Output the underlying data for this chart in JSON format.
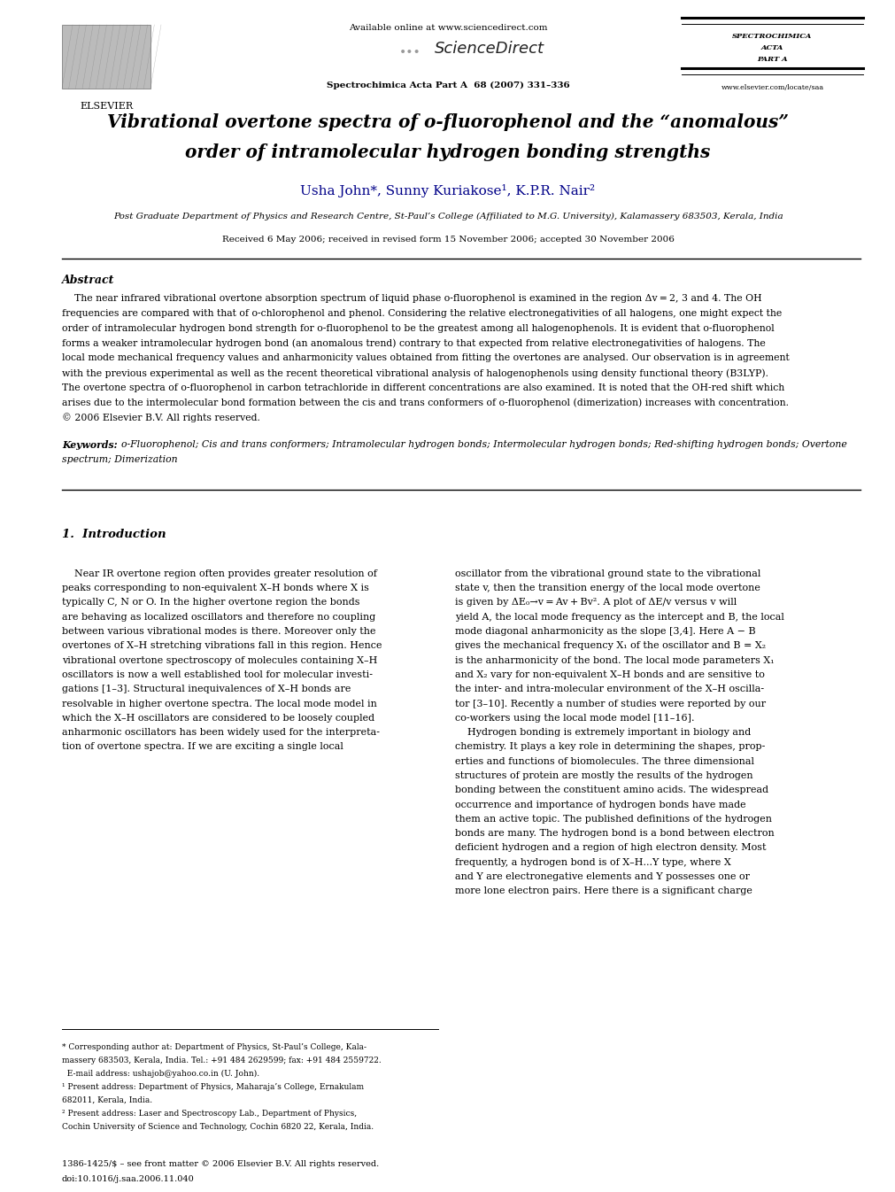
{
  "page_width": 9.92,
  "page_height": 13.23,
  "bg_color": "#ffffff",
  "available_online": "Available online at www.sciencedirect.com",
  "journal_citation": "Spectrochimica Acta Part A  68 (2007) 331–336",
  "spectro_lines": [
    "SPECTROCHIMICA",
    "ACTA",
    "PART A"
  ],
  "website": "www.elsevier.com/locate/saa",
  "title_line1": "Vibrational overtone spectra of o-fluorophenol and the “anomalous”",
  "title_line2": "order of intramolecular hydrogen bonding strengths",
  "authors": "Usha John*, Sunny Kuriakose¹, K.P.R. Nair²",
  "affiliation": "Post Graduate Department of Physics and Research Centre, St-Paul’s College (Affiliated to M.G. University), Kalamassery 683503, Kerala, India",
  "received_line": "Received 6 May 2006; received in revised form 15 November 2006; accepted 30 November 2006",
  "abstract_title": "Abstract",
  "abstract_lines": [
    "    The near infrared vibrational overtone absorption spectrum of liquid phase o-fluorophenol is examined in the region Δv = 2, 3 and 4. The OH",
    "frequencies are compared with that of o-chlorophenol and phenol. Considering the relative electronegativities of all halogens, one might expect the",
    "order of intramolecular hydrogen bond strength for o-fluorophenol to be the greatest among all halogenophenols. It is evident that o-fluorophenol",
    "forms a weaker intramolecular hydrogen bond (an anomalous trend) contrary to that expected from relative electronegativities of halogens. The",
    "local mode mechanical frequency values and anharmonicity values obtained from fitting the overtones are analysed. Our observation is in agreement",
    "with the previous experimental as well as the recent theoretical vibrational analysis of halogenophenols using density functional theory (B3LYP).",
    "The overtone spectra of o-fluorophenol in carbon tetrachloride in different concentrations are also examined. It is noted that the OH-red shift which",
    "arises due to the intermolecular bond formation between the cis and trans conformers of o-fluorophenol (dimerization) increases with concentration.",
    "© 2006 Elsevier B.V. All rights reserved."
  ],
  "keywords_label": "Keywords:",
  "keywords_lines": [
    "  o-Fluorophenol; Cis and trans conformers; Intramolecular hydrogen bonds; Intermolecular hydrogen bonds; Red-shifting hydrogen bonds; Overtone",
    "spectrum; Dimerization"
  ],
  "section1_title": "1.  Introduction",
  "intro_col1": [
    "    Near IR overtone region often provides greater resolution of",
    "peaks corresponding to non-equivalent X–H bonds where X is",
    "typically C, N or O. In the higher overtone region the bonds",
    "are behaving as localized oscillators and therefore no coupling",
    "between various vibrational modes is there. Moreover only the",
    "overtones of X–H stretching vibrations fall in this region. Hence",
    "vibrational overtone spectroscopy of molecules containing X–H",
    "oscillators is now a well established tool for molecular investi-",
    "gations [1–3]. Structural inequivalences of X–H bonds are",
    "resolvable in higher overtone spectra. The local mode model in",
    "which the X–H oscillators are considered to be loosely coupled",
    "anharmonic oscillators has been widely used for the interpreta-",
    "tion of overtone spectra. If we are exciting a single local"
  ],
  "intro_col2": [
    "oscillator from the vibrational ground state to the vibrational",
    "state v, then the transition energy of the local mode overtone",
    "is given by ΔE₀→v = Av + Bv². A plot of ΔE/v versus v will",
    "yield A, the local mode frequency as the intercept and B, the local",
    "mode diagonal anharmonicity as the slope [3,4]. Here A − B",
    "gives the mechanical frequency X₁ of the oscillator and B = X₂",
    "is the anharmonicity of the bond. The local mode parameters X₁",
    "and X₂ vary for non-equivalent X–H bonds and are sensitive to",
    "the inter- and intra-molecular environment of the X–H oscilla-",
    "tor [3–10]. Recently a number of studies were reported by our",
    "co-workers using the local mode model [11–16].",
    "    Hydrogen bonding is extremely important in biology and",
    "chemistry. It plays a key role in determining the shapes, prop-",
    "erties and functions of biomolecules. The three dimensional",
    "structures of protein are mostly the results of the hydrogen",
    "bonding between the constituent amino acids. The widespread",
    "occurrence and importance of hydrogen bonds have made",
    "them an active topic. The published definitions of the hydrogen",
    "bonds are many. The hydrogen bond is a bond between electron",
    "deficient hydrogen and a region of high electron density. Most",
    "frequently, a hydrogen bond is of X–H...Y type, where X",
    "and Y are electronegative elements and Y possesses one or",
    "more lone electron pairs. Here there is a significant charge"
  ],
  "footnote_lines": [
    "* Corresponding author at: Department of Physics, St-Paul’s College, Kala-",
    "massery 683503, Kerala, India. Tel.: +91 484 2629599; fax: +91 484 2559722.",
    "  E-mail address: ushajob@yahoo.co.in (U. John).",
    "¹ Present address: Department of Physics, Maharaja’s College, Ernakulam",
    "682011, Kerala, India.",
    "² Present address: Laser and Spectroscopy Lab., Department of Physics,",
    "Cochin University of Science and Technology, Cochin 6820 22, Kerala, India."
  ],
  "footer_issn": "1386-1425/$ – see front matter © 2006 Elsevier B.V. All rights reserved.",
  "footer_doi": "doi:10.1016/j.saa.2006.11.040"
}
